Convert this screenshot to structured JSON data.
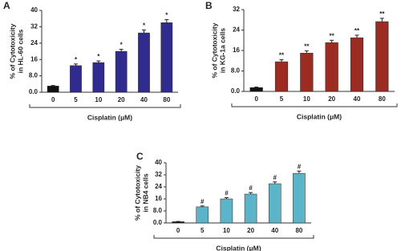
{
  "chart_data": [
    {
      "type": "bar",
      "panel": "A",
      "ylabel": [
        "% of Cytotoxicity",
        "in HL-60 cells"
      ],
      "xlabel": "Cisplatin (μM)",
      "categories": [
        "0",
        "5",
        "10",
        "20",
        "40",
        "80"
      ],
      "values": [
        3,
        13,
        14.5,
        20,
        29,
        34
      ],
      "errors": [
        0.3,
        0.8,
        0.8,
        1,
        1.5,
        1.5
      ],
      "annotations": [
        null,
        "*",
        "*",
        "*",
        "*",
        "*"
      ],
      "colors": [
        "#111111",
        "#2f2b8f",
        "#2f2b8f",
        "#2f2b8f",
        "#2f2b8f",
        "#2f2b8f"
      ],
      "ylim": [
        0,
        40
      ],
      "yticks": [
        {
          "value": 0,
          "label": "0.0"
        },
        {
          "value": 8,
          "label": "8.0"
        },
        16,
        24,
        32,
        40
      ]
    },
    {
      "type": "bar",
      "panel": "B",
      "ylabel": [
        "% of Cytotoxicity",
        "in KG-1a cells"
      ],
      "xlabel": "Cisplatin (μM)",
      "categories": [
        "0",
        "5",
        "10",
        "20",
        "40",
        "80"
      ],
      "values": [
        1.5,
        11.6,
        15,
        19.1,
        21,
        27.3
      ],
      "errors": [
        0.2,
        0.8,
        0.9,
        0.9,
        1,
        1.3
      ],
      "annotations": [
        null,
        "**",
        "**",
        "**",
        "**",
        "**"
      ],
      "colors": [
        "#111111",
        "#9c2b22",
        "#9c2b22",
        "#9c2b22",
        "#9c2b22",
        "#9c2b22"
      ],
      "ylim": [
        0,
        32
      ],
      "yticks": [
        {
          "value": 0,
          "label": "0.0"
        },
        {
          "value": 8,
          "label": "8.0"
        },
        16,
        24,
        32
      ]
    },
    {
      "type": "bar",
      "panel": "C",
      "ylabel": [
        "% of Cytotoxicity",
        "in NB4 cells"
      ],
      "xlabel": "Cisplatin (μM)",
      "categories": [
        "0",
        "5",
        "10",
        "20",
        "40",
        "80"
      ],
      "values": [
        0.8,
        10.7,
        16,
        19.2,
        26.1,
        33
      ],
      "errors": [
        0.2,
        0.6,
        0.8,
        1,
        1.2,
        1.5
      ],
      "annotations": [
        null,
        "#",
        "#",
        "#",
        "#",
        "#"
      ],
      "colors": [
        "#111111",
        "#5bb5c9",
        "#5bb5c9",
        "#5bb5c9",
        "#5bb5c9",
        "#5bb5c9"
      ],
      "ylim": [
        0,
        40
      ],
      "yticks": [
        {
          "value": 0,
          "label": "0.0"
        },
        {
          "value": 8,
          "label": "8.0"
        },
        16,
        24,
        32,
        40
      ]
    }
  ]
}
